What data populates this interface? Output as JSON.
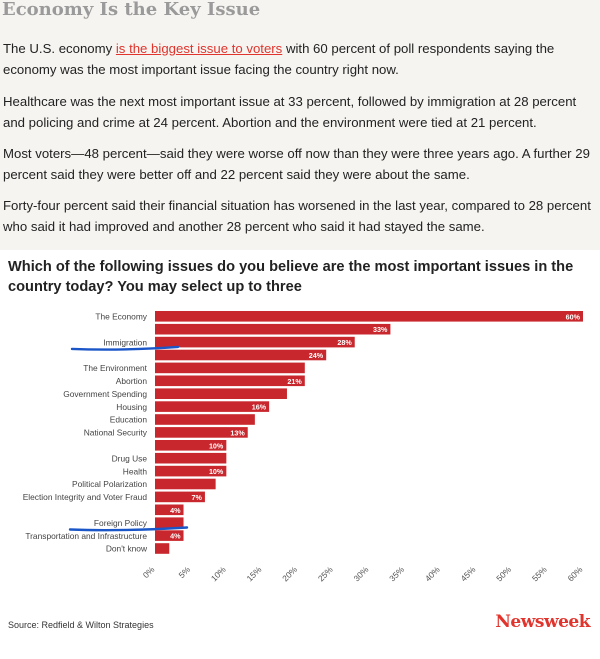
{
  "article": {
    "heading": "Economy Is the Key Issue",
    "p1_before": "The U.S. economy ",
    "p1_link": "is the biggest issue to voters",
    "p1_after": " with 60 percent of poll respondents saying the economy was the most important issue facing the country right now.",
    "p2": "Healthcare was the next most important issue at 33 percent, followed by immigration at 28 percent and policing and crime at 24 percent. Abortion and the environment were tied at 21 percent.",
    "p3": "Most voters—48 percent—said they were worse off now than they were three years ago. A further 29 percent said they were better off and 22 percent said they were about the same.",
    "p4": "Forty-four percent said their financial situation has worsened in the last year, compared to 28 percent who said it had improved and another 28 percent who said it had stayed the same."
  },
  "chart_data": {
    "type": "bar",
    "orientation": "horizontal",
    "title": "Which of the following issues do you believe are the most important issues in the country today? You may select up to three",
    "categories": [
      "The Economy",
      "",
      "Immigration",
      "",
      "The Environment",
      "Abortion",
      "Government Spending",
      "Housing",
      "Education",
      "National Security",
      "",
      "Drug Use",
      "Health",
      "Political Polarization",
      "Election Integrity and Voter Fraud",
      "",
      "Foreign Policy",
      "Transportation and Infrastructure",
      "Don't know"
    ],
    "values": [
      60,
      33,
      28,
      24,
      21,
      21,
      18.5,
      16,
      14,
      13,
      10,
      10,
      10,
      8.5,
      7,
      4,
      4,
      4,
      2
    ],
    "value_labels": [
      "60%",
      "33%",
      "28%",
      "24%",
      "",
      "21%",
      "",
      "16%",
      "",
      "13%",
      "10%",
      "",
      "10%",
      "",
      "7%",
      "4%",
      "",
      "4%",
      ""
    ],
    "xlim": [
      0,
      60
    ],
    "xticks": [
      "0%",
      "5%",
      "10%",
      "15%",
      "20%",
      "25%",
      "30%",
      "35%",
      "40%",
      "45%",
      "50%",
      "55%",
      "60%"
    ],
    "bar_color": "#c8282d",
    "annotation_color": "#1a56c8",
    "annotated_categories": [
      "Immigration",
      "Foreign Policy"
    ]
  },
  "footer": {
    "source": "Source: Redfield & Wilton Strategies",
    "logo": "Newsweek"
  }
}
